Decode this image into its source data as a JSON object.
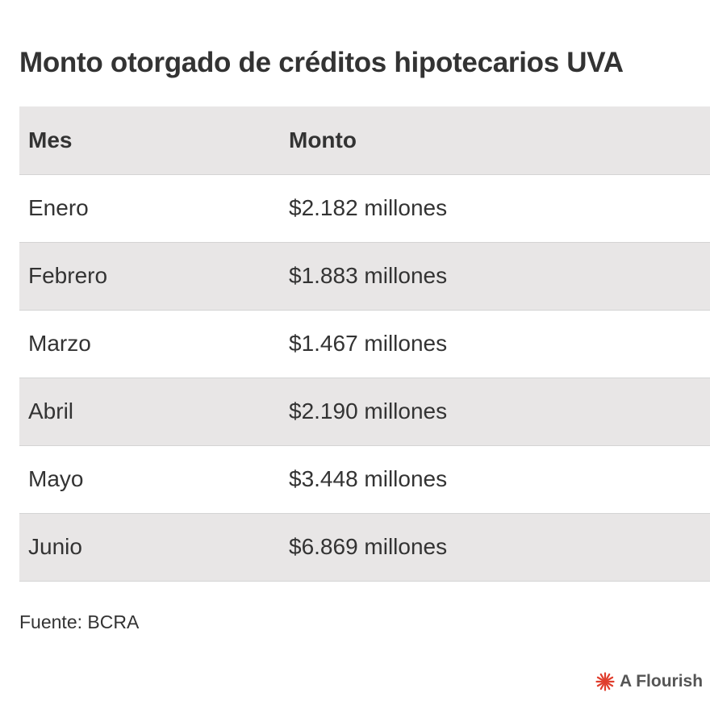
{
  "title": "Monto otorgado de créditos hipotecarios UVA",
  "table": {
    "headers": [
      "Mes",
      "Monto"
    ],
    "rows": [
      [
        "Enero",
        "$2.182 millones"
      ],
      [
        "Febrero",
        "$1.883 millones"
      ],
      [
        "Marzo",
        "$1.467 millones"
      ],
      [
        "Abril",
        "$2.190 millones"
      ],
      [
        "Mayo",
        "$3.448 millones"
      ],
      [
        "Junio",
        "$6.869 millones"
      ]
    ]
  },
  "source": "Fuente: BCRA",
  "credit": {
    "text": "A Flourish",
    "icon": "flourish-logo-icon",
    "icon_color": "#e03e2d"
  },
  "colors": {
    "header_bg": "#e8e6e6",
    "stripe_bg": "#e8e6e6",
    "text": "#333333"
  },
  "chart_data": {
    "type": "table",
    "title": "Monto otorgado de créditos hipotecarios UVA",
    "columns": [
      "Mes",
      "Monto"
    ],
    "rows": [
      [
        "Enero",
        "$2.182 millones"
      ],
      [
        "Febrero",
        "$1.883 millones"
      ],
      [
        "Marzo",
        "$1.467 millones"
      ],
      [
        "Abril",
        "$2.190 millones"
      ],
      [
        "Mayo",
        "$3.448 millones"
      ],
      [
        "Junio",
        "$6.869 millones"
      ]
    ],
    "categories": [
      "Enero",
      "Febrero",
      "Marzo",
      "Abril",
      "Mayo",
      "Junio"
    ],
    "values": [
      2182,
      1883,
      1467,
      2190,
      3448,
      6869
    ]
  }
}
